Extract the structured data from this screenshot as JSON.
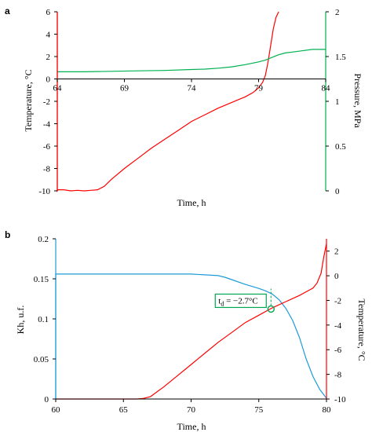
{
  "chart_data": [
    {
      "panel_label": "a",
      "type": "line",
      "xlabel": "Time, h",
      "ylabel_left": "Temperature, °C",
      "ylabel_right": "Pressure, MPa",
      "xlim": [
        64,
        84
      ],
      "ylim_left": [
        -10,
        6
      ],
      "ylim_right": [
        0,
        2
      ],
      "xticks": [
        "64",
        "69",
        "74",
        "79",
        "84"
      ],
      "yticks_left": [
        "6",
        "4",
        "2",
        "0",
        "-2",
        "-4",
        "-6",
        "-8",
        "-10"
      ],
      "yticks_right": [
        "2",
        "1.5",
        "1",
        "0.5",
        "0"
      ],
      "colors": {
        "temperature": "#ff0000",
        "pressure": "#00b050"
      },
      "series": [
        {
          "axis": "left",
          "color": "#ff0000",
          "x": [
            64,
            64,
            64.05,
            64.5,
            65,
            65.5,
            66,
            66.5,
            67,
            67.5,
            68,
            69,
            70,
            71,
            72,
            73,
            74,
            75,
            76,
            77,
            78,
            78.6,
            79,
            79.3,
            79.5,
            79.7,
            79.9,
            80.1,
            80.3,
            80.5
          ],
          "y": [
            6,
            -10,
            -9.9,
            -9.9,
            -10,
            -9.95,
            -10,
            -9.95,
            -9.9,
            -9.6,
            -9.0,
            -8.0,
            -7.1,
            -6.2,
            -5.4,
            -4.6,
            -3.8,
            -3.2,
            -2.6,
            -2.1,
            -1.6,
            -1.2,
            -0.8,
            -0.3,
            0.3,
            1.5,
            3.0,
            4.5,
            5.5,
            6
          ]
        },
        {
          "axis": "right",
          "color": "#00b050",
          "x": [
            64,
            66,
            68,
            70,
            72,
            74,
            75,
            76,
            77,
            78,
            79,
            79.5,
            80,
            80.5,
            81,
            81.5,
            82,
            83,
            84
          ],
          "y": [
            1.33,
            1.33,
            1.335,
            1.34,
            1.345,
            1.355,
            1.36,
            1.37,
            1.385,
            1.41,
            1.44,
            1.46,
            1.49,
            1.52,
            1.54,
            1.55,
            1.56,
            1.58,
            1.58
          ]
        }
      ]
    },
    {
      "panel_label": "b",
      "type": "line",
      "xlabel": "Time, h",
      "ylabel_left": "Kh, u.f.",
      "ylabel_right": "Temperature, °C",
      "xlim": [
        60,
        80
      ],
      "ylim_left": [
        0,
        0.2
      ],
      "ylim_right": [
        -10,
        3
      ],
      "xticks": [
        "60",
        "65",
        "70",
        "75",
        "80"
      ],
      "yticks_left": [
        "0.2",
        "0.15",
        "0.1",
        "0.05",
        "0"
      ],
      "yticks_right": [
        "2",
        "0",
        "-2",
        "-4",
        "-6",
        "-8",
        "-10"
      ],
      "colors": {
        "kh": "#1e9bd7",
        "temperature": "#ff0000",
        "marker": "#00a651"
      },
      "annotation": {
        "prefix": "t",
        "subscript": "d",
        "value": " = −2.7°C",
        "x": 75.9,
        "y_right": -2.7
      },
      "series": [
        {
          "axis": "left",
          "color": "#1e9bd7",
          "x": [
            60,
            60,
            60.05,
            62,
            64,
            66,
            68,
            70,
            71,
            72,
            72.5,
            73,
            74,
            75,
            75.5,
            76,
            76.5,
            77,
            77.5,
            78,
            78.5,
            79,
            79.5,
            80
          ],
          "y": [
            0,
            0.156,
            0.156,
            0.156,
            0.156,
            0.156,
            0.156,
            0.156,
            0.155,
            0.154,
            0.152,
            0.149,
            0.143,
            0.138,
            0.135,
            0.131,
            0.124,
            0.113,
            0.098,
            0.077,
            0.05,
            0.028,
            0.012,
            0.001
          ]
        },
        {
          "axis": "right",
          "color": "#ff0000",
          "x": [
            60,
            62,
            64,
            66,
            66.5,
            67,
            68,
            69,
            70,
            71,
            72,
            73,
            74,
            75,
            76,
            77,
            78,
            78.5,
            79,
            79.3,
            79.6,
            79.8,
            80
          ],
          "y": [
            -10,
            -10,
            -10,
            -10,
            -9.95,
            -9.8,
            -9.0,
            -8.1,
            -7.2,
            -6.3,
            -5.4,
            -4.6,
            -3.8,
            -3.2,
            -2.6,
            -2.1,
            -1.6,
            -1.3,
            -1.0,
            -0.6,
            0.2,
            1.5,
            2.6
          ]
        }
      ]
    }
  ]
}
